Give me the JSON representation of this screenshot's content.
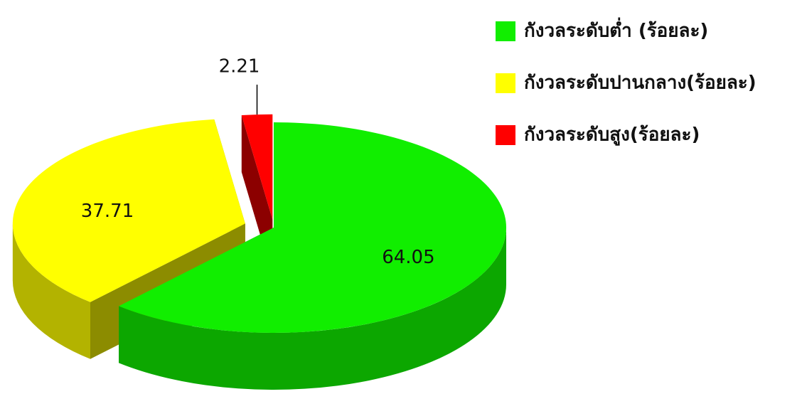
{
  "chart_data": {
    "type": "pie",
    "categories": [
      "กังวลระดับต่ำ (ร้อยละ)",
      "กังวลระดับปานกลาง(ร้อยละ)",
      "กังวลระดับสูง(ร้อยละ)"
    ],
    "values": [
      64.05,
      37.71,
      2.21
    ],
    "colors": [
      "#11ee00",
      "#ffff00",
      "#ff0000"
    ],
    "legend": "right"
  }
}
